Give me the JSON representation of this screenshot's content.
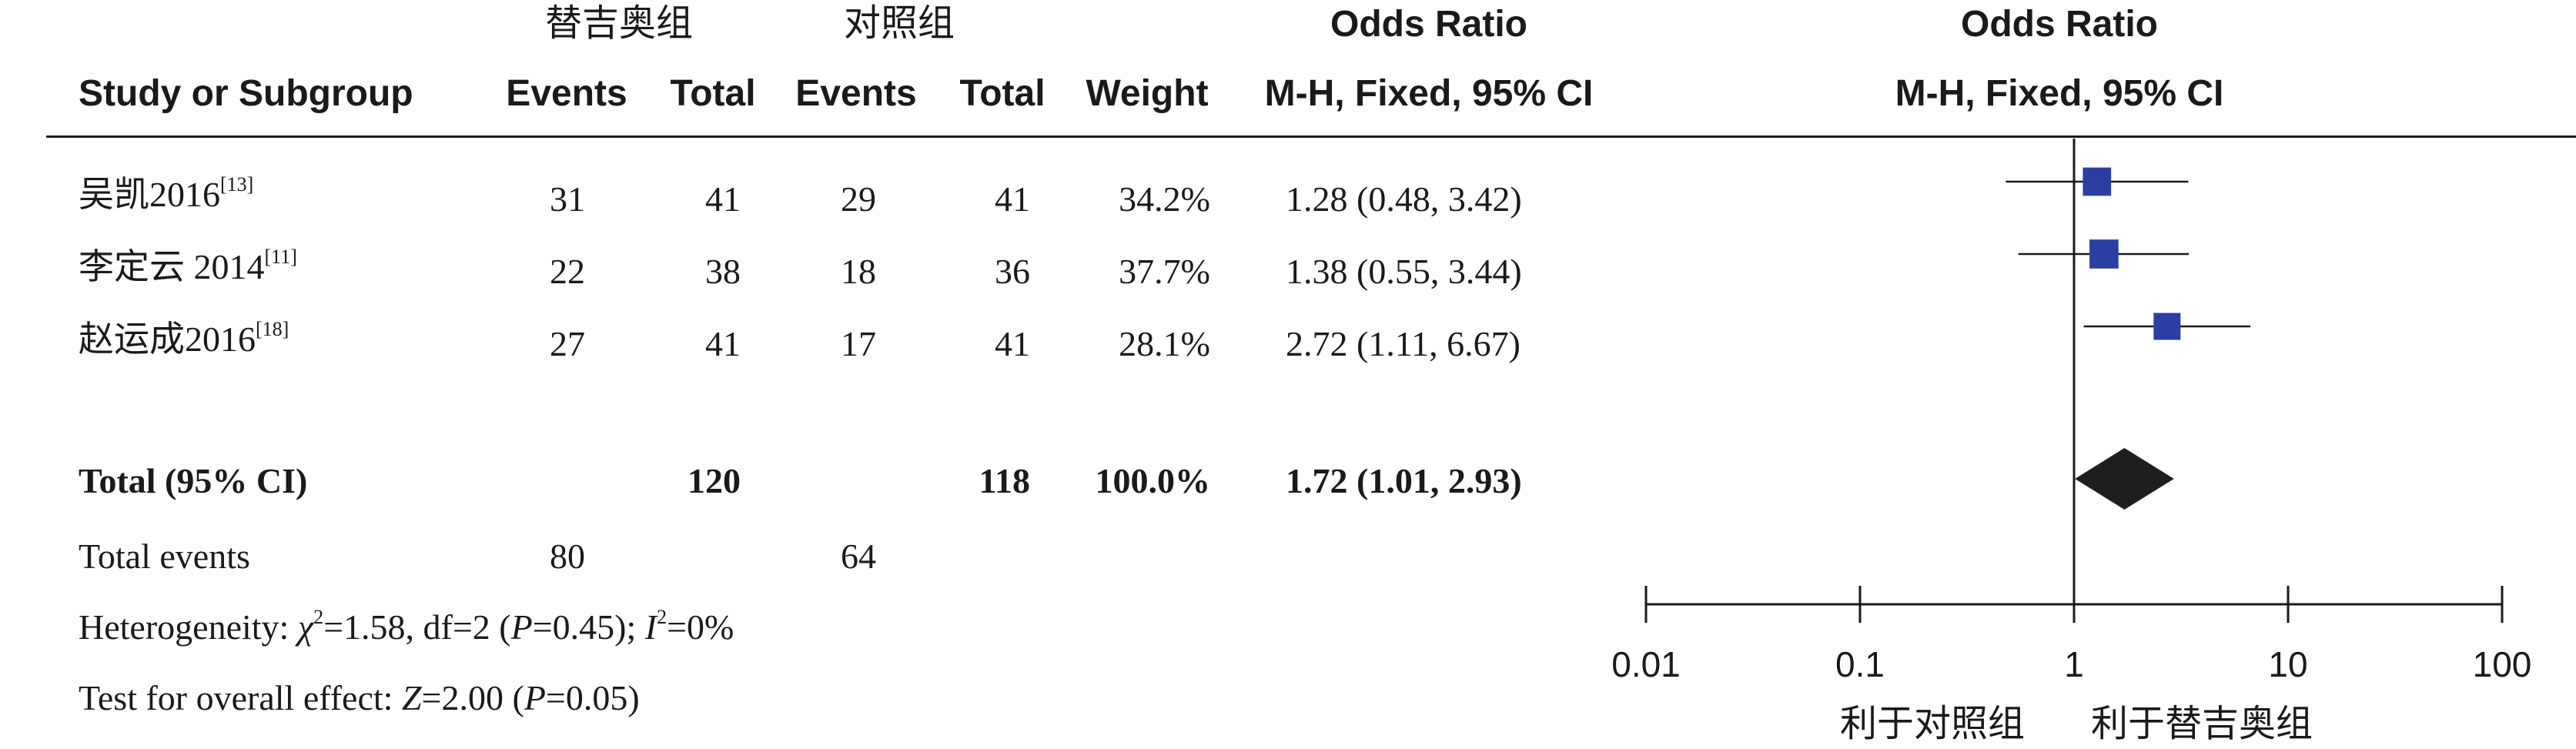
{
  "header": {
    "group_exp": "替吉奥组",
    "group_ctl": "对照组",
    "or_label_left": "Odds Ratio",
    "or_label_right": "Odds Ratio",
    "col_study": "Study or Subgroup",
    "col_events_exp": "Events",
    "col_total_exp": "Total",
    "col_events_ctl": "Events",
    "col_total_ctl": "Total",
    "col_weight": "Weight",
    "col_method_left": "M-H, Fixed, 95% CI",
    "col_method_right": "M-H, Fixed, 95% CI"
  },
  "studies": [
    {
      "name": "吴凯2016",
      "ref": "[13]",
      "events_exp": "31",
      "total_exp": "41",
      "events_ctl": "29",
      "total_ctl": "41",
      "weight": "34.2%",
      "ci_text": "1.28 (0.48, 3.42)"
    },
    {
      "name": "李定云 2014",
      "ref": "[11]",
      "events_exp": "22",
      "total_exp": "38",
      "events_ctl": "18",
      "total_ctl": "36",
      "weight": "37.7%",
      "ci_text": "1.38 (0.55, 3.44)"
    },
    {
      "name": "赵运成2016",
      "ref": "[18]",
      "events_exp": "27",
      "total_exp": "41",
      "events_ctl": "17",
      "total_ctl": "41",
      "weight": "28.1%",
      "ci_text": "2.72 (1.11, 6.67)"
    }
  ],
  "total": {
    "label": "Total (95% CI)",
    "total_exp": "120",
    "total_ctl": "118",
    "weight": "100.0%",
    "ci_text": "1.72 (1.01, 2.93)"
  },
  "total_events": {
    "label": "Total events",
    "exp": "80",
    "ctl": "64"
  },
  "heterogeneity": {
    "prefix": "Heterogeneity: ",
    "chi_sym": "χ",
    "chi_sup": "2",
    "chi_rest": "=1.58, df=2 (",
    "p_sym": "P",
    "p_rest": "=0.45); ",
    "i_sym": "I",
    "i_sup": "2",
    "i_rest": "=0%"
  },
  "overall": {
    "prefix": "Test for overall effect: ",
    "z_sym": "Z",
    "z_rest": "=2.00 (",
    "p_sym": "P",
    "p_rest": "=0.05)"
  },
  "axis": {
    "favours_left": "利于对照组",
    "favours_right": "利于替吉奥组"
  },
  "chart_data": {
    "type": "forest",
    "scale": "log",
    "xlim": [
      0.01,
      100
    ],
    "ticks": [
      0.01,
      0.1,
      1,
      10,
      100
    ],
    "tick_labels": [
      "0.01",
      "0.1",
      "1",
      "10",
      "100"
    ],
    "null_line": 1,
    "marker_color": "#2b3fa3",
    "diamond_color": "#1e1e1e",
    "studies": [
      {
        "name": "吴凯2016",
        "or": 1.28,
        "lo": 0.48,
        "hi": 3.42,
        "weight": 34.2
      },
      {
        "name": "李定云 2014",
        "or": 1.38,
        "lo": 0.55,
        "hi": 3.44,
        "weight": 37.7
      },
      {
        "name": "赵运成2016",
        "or": 2.72,
        "lo": 1.11,
        "hi": 6.67,
        "weight": 28.1
      }
    ],
    "pooled": {
      "or": 1.72,
      "lo": 1.01,
      "hi": 2.93
    }
  }
}
